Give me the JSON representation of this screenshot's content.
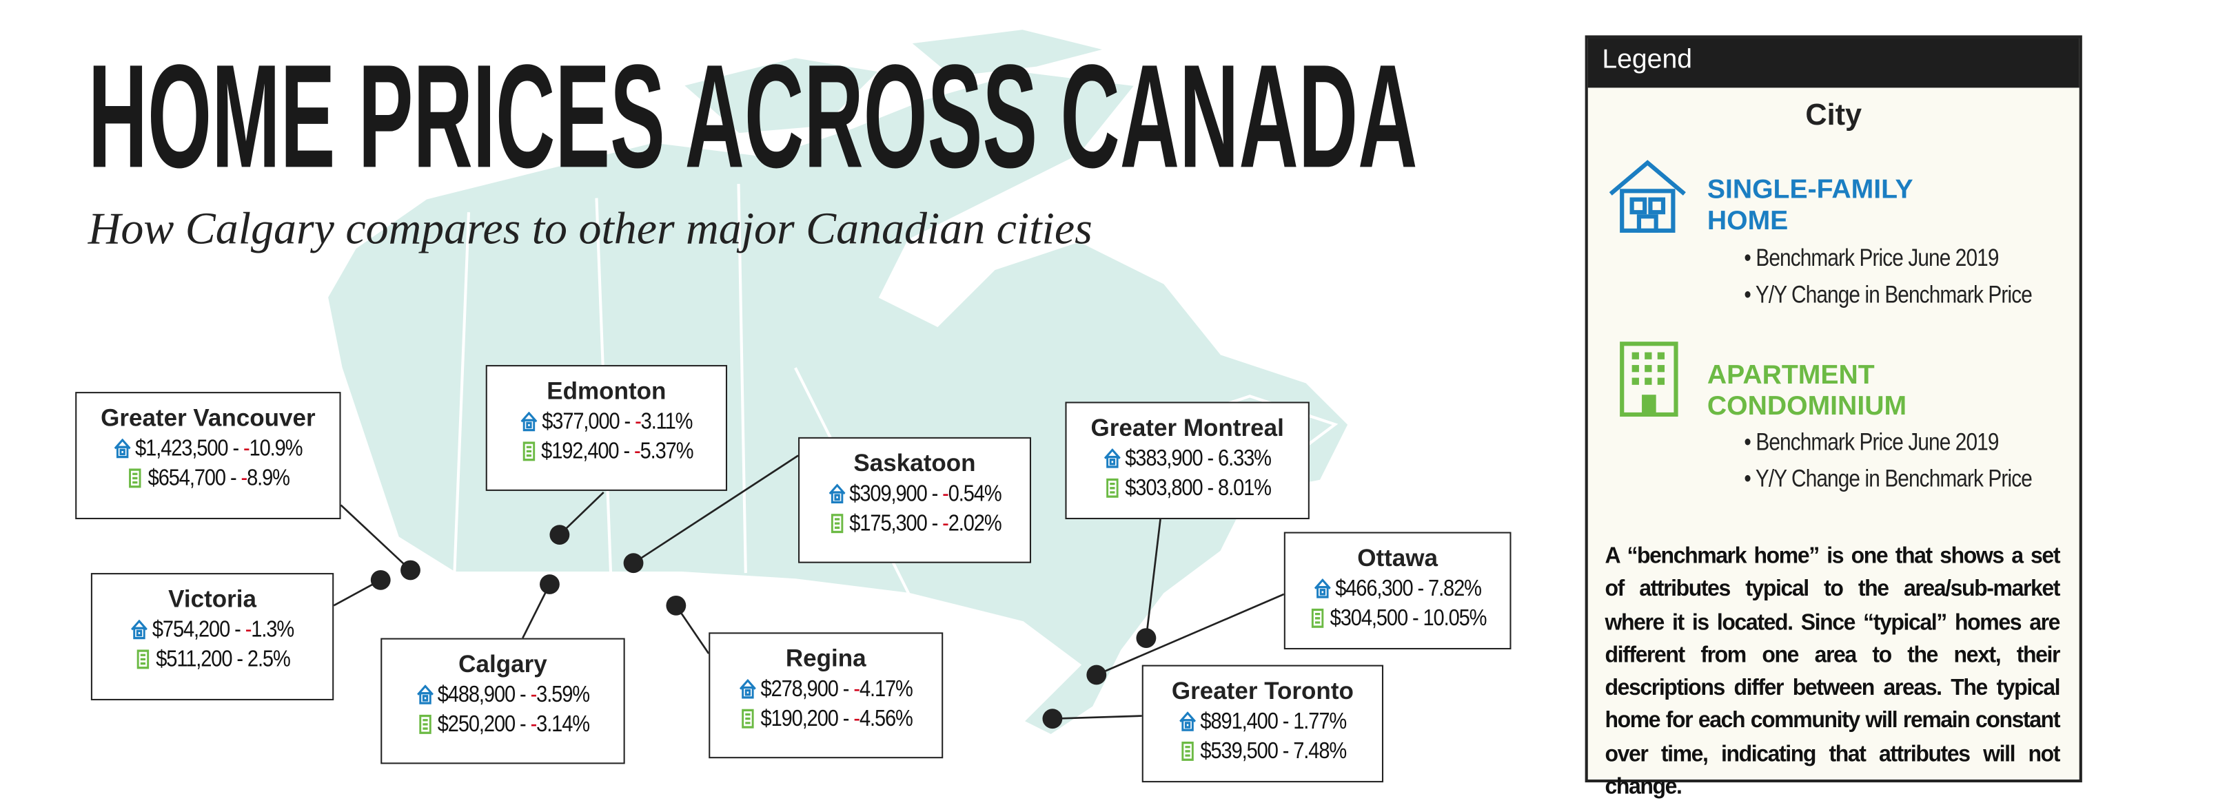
{
  "header": {
    "title": "HOME PRICES ACROSS CANADA",
    "subtitle": "How Calgary compares to other major Canadian cities"
  },
  "cities": [
    {
      "name": "Greater Vancouver",
      "house": "$1,423,500 - -10.9%",
      "condo": "$654,700 - -8.9%"
    },
    {
      "name": "Victoria",
      "house": "$754,200 - -1.3%",
      "condo": "$511,200 - 2.5%"
    },
    {
      "name": "Edmonton",
      "house": "$377,000 - -3.11%",
      "condo": "$192,400 - -5.37%"
    },
    {
      "name": "Calgary",
      "house": "$488,900 - -3.59%",
      "condo": "$250,200 - -3.14%"
    },
    {
      "name": "Saskatoon",
      "house": "$309,900 - -0.54%",
      "condo": "$175,300 - -2.02%"
    },
    {
      "name": "Regina",
      "house": "$278,900 - -4.17%",
      "condo": "$190,200 - -4.56%"
    },
    {
      "name": "Greater Montreal",
      "house": "$383,900 - 6.33%",
      "condo": "$303,800 - 8.01%"
    },
    {
      "name": "Ottawa",
      "house": "$466,300 - 7.82%",
      "condo": "$304,500 - 10.05%"
    },
    {
      "name": "Greater Toronto",
      "house": "$891,400 - 1.77%",
      "condo": "$539,500 - 7.48%"
    }
  ],
  "legend": {
    "header": "Legend",
    "city": "City",
    "house": {
      "label": "SINGLE-FAMILY HOME",
      "bullets": [
        "Benchmark Price June 2019",
        "Y/Y Change in Benchmark Price"
      ]
    },
    "condo": {
      "label": "APARTMENT CONDOMINIUM",
      "bullets": [
        "Benchmark Price June 2019",
        "Y/Y Change in Benchmark Price"
      ]
    },
    "note": "A “benchmark home” is one that shows a set of attributes typical to the area/sub-market where it is located. Since “typical” homes are different from one area to the next, their descriptions differ between areas. The typical home for each community will remain constant over time, indicating that attributes will not change."
  }
}
